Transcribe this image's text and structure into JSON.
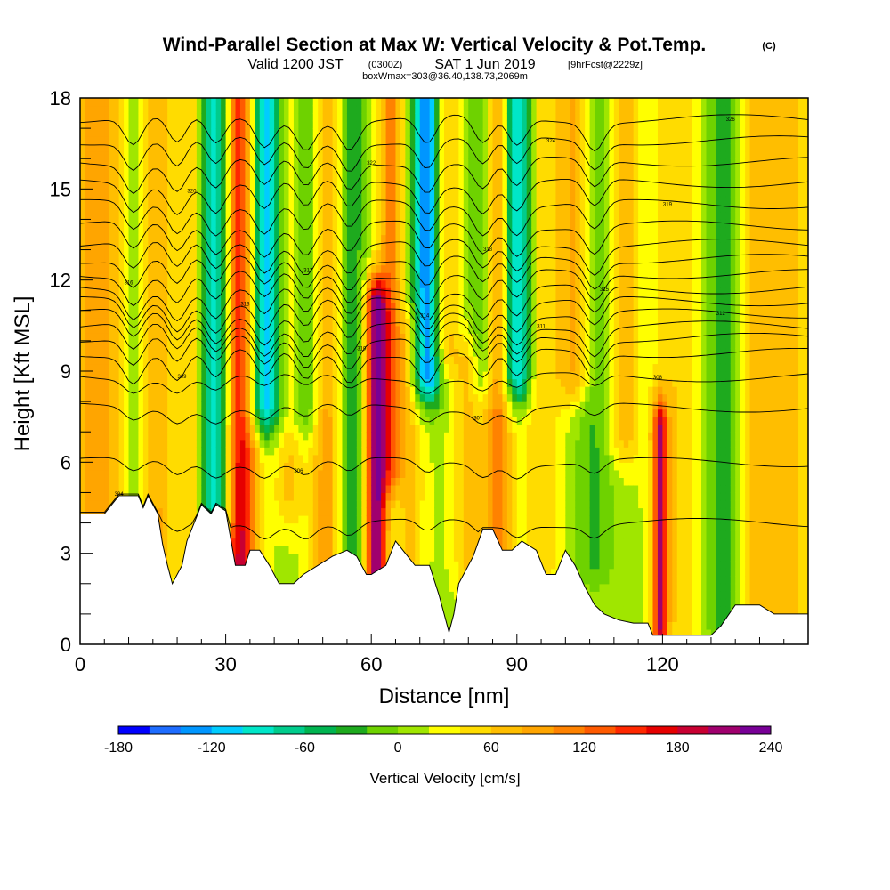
{
  "header": {
    "title": "Wind-Parallel Section at Max W: Vertical Velocity & Pot.Temp.",
    "copyright": "(C)",
    "valid_prefix": "Valid 1200 JST",
    "utc": "(0300Z)",
    "valid_date": "SAT 1 Jun 2019",
    "forecast": "[9hrFcst@2229z]",
    "box_info": "boxWmax=303@36.40,138.73,2069m"
  },
  "chart_data": {
    "type": "heatmap",
    "xlabel": "Distance [nm]",
    "ylabel": "Height [Kft MSL]",
    "xlim": [
      0,
      150
    ],
    "ylim": [
      0,
      18
    ],
    "xticks": [
      0,
      30,
      60,
      90,
      120
    ],
    "yticks": [
      0,
      3,
      6,
      9,
      12,
      15,
      18
    ],
    "colorbar": {
      "label": "Vertical Velocity [cm/s]",
      "min": -180,
      "max": 240,
      "step": 20,
      "ticks": [
        -180,
        -120,
        -60,
        0,
        60,
        120,
        180,
        240
      ],
      "colors": [
        "#0000ff",
        "#1e6cff",
        "#0096ff",
        "#00ccff",
        "#00e6c8",
        "#00cc8c",
        "#00b450",
        "#1eaa1e",
        "#6ed200",
        "#a0e600",
        "#ffff00",
        "#ffdc00",
        "#ffbe00",
        "#ffa500",
        "#ff8200",
        "#ff5a00",
        "#ff2800",
        "#e60000",
        "#c80032",
        "#a0006e",
        "#780096"
      ]
    },
    "velocity_features": [
      {
        "x": 5,
        "w": 80,
        "width": 8,
        "z0": 4,
        "z1": 18
      },
      {
        "x": 11,
        "w": -55,
        "width": 4,
        "z0": 5,
        "z1": 18
      },
      {
        "x": 16.5,
        "w": 75,
        "width": 4,
        "z0": 3,
        "z1": 18
      },
      {
        "x": 20,
        "w": -30,
        "width": 4,
        "z0": 3,
        "z1": 18
      },
      {
        "x": 23.5,
        "w": 60,
        "width": 3.5,
        "z0": 2.5,
        "z1": 18
      },
      {
        "x": 28,
        "w": -130,
        "width": 3.5,
        "z0": 4.5,
        "z1": 18
      },
      {
        "x": 33,
        "w": 175,
        "width": 3.5,
        "z0": 2.5,
        "z1": 18
      },
      {
        "x": 38,
        "w": -140,
        "width": 4,
        "z0": 8,
        "z1": 18
      },
      {
        "x": 43,
        "w": 50,
        "width": 3,
        "z0": 5,
        "z1": 18
      },
      {
        "x": 46.5,
        "w": -60,
        "width": 3,
        "z0": 8,
        "z1": 18
      },
      {
        "x": 51,
        "w": 80,
        "width": 3.5,
        "z0": 2.5,
        "z1": 18
      },
      {
        "x": 55.5,
        "w": -60,
        "width": 3,
        "z0": 3,
        "z1": 18
      },
      {
        "x": 61,
        "w": 205,
        "width": 2.2,
        "z0": 2.5,
        "z1": 11
      },
      {
        "x": 64,
        "w": 90,
        "width": 2.5,
        "z0": 6,
        "z1": 18
      },
      {
        "x": 68,
        "w": 50,
        "width": 3,
        "z0": 3,
        "z1": 10
      },
      {
        "x": 71.5,
        "w": -165,
        "width": 2.8,
        "z0": 9,
        "z1": 18
      },
      {
        "x": 75,
        "w": 60,
        "width": 3,
        "z0": 10,
        "z1": 18
      },
      {
        "x": 80,
        "w": 55,
        "width": 3,
        "z0": 3,
        "z1": 9
      },
      {
        "x": 83,
        "w": -60,
        "width": 2.5,
        "z0": 9,
        "z1": 18
      },
      {
        "x": 86,
        "w": 100,
        "width": 3,
        "z0": 3,
        "z1": 18
      },
      {
        "x": 90,
        "w": -140,
        "width": 3,
        "z0": 9,
        "z1": 18
      },
      {
        "x": 95,
        "w": 45,
        "width": 4,
        "z0": 3,
        "z1": 18
      },
      {
        "x": 102,
        "w": 75,
        "width": 3.5,
        "z0": 9,
        "z1": 18
      },
      {
        "x": 106,
        "w": -40,
        "width": 4,
        "z0": 3,
        "z1": 18
      },
      {
        "x": 112,
        "w": 55,
        "width": 3.5,
        "z0": 7,
        "z1": 18
      },
      {
        "x": 119.5,
        "w": 160,
        "width": 1.5,
        "z0": 0.5,
        "z1": 7
      },
      {
        "x": 123,
        "w": 45,
        "width": 5,
        "z0": 1,
        "z1": 18
      },
      {
        "x": 133,
        "w": -55,
        "width": 4,
        "z0": 1,
        "z1": 18
      },
      {
        "x": 138,
        "w": 45,
        "width": 3.5,
        "z0": 1,
        "z1": 18
      },
      {
        "x": 145,
        "w": 55,
        "width": 6,
        "z0": 1,
        "z1": 18
      }
    ],
    "terrain": [
      [
        0,
        4.3
      ],
      [
        5,
        4.3
      ],
      [
        8,
        4.9
      ],
      [
        12,
        4.9
      ],
      [
        13,
        4.5
      ],
      [
        14,
        4.9
      ],
      [
        16,
        4.3
      ],
      [
        17,
        3.3
      ],
      [
        18,
        2.6
      ],
      [
        19,
        2.0
      ],
      [
        21,
        2.6
      ],
      [
        22,
        3.4
      ],
      [
        24,
        4.2
      ],
      [
        25,
        4.6
      ],
      [
        27,
        4.3
      ],
      [
        28,
        4.6
      ],
      [
        30,
        4.4
      ],
      [
        31,
        3.5
      ],
      [
        32,
        2.6
      ],
      [
        34,
        2.6
      ],
      [
        35,
        3.1
      ],
      [
        37,
        3.1
      ],
      [
        39,
        2.6
      ],
      [
        41,
        2.0
      ],
      [
        44,
        2.0
      ],
      [
        46,
        2.3
      ],
      [
        49,
        2.6
      ],
      [
        52,
        2.9
      ],
      [
        55,
        3.1
      ],
      [
        57,
        2.9
      ],
      [
        59,
        2.3
      ],
      [
        60,
        2.3
      ],
      [
        63,
        2.6
      ],
      [
        65,
        3.4
      ],
      [
        67,
        3.0
      ],
      [
        69,
        2.6
      ],
      [
        72,
        2.6
      ],
      [
        74,
        1.6
      ],
      [
        75,
        1.0
      ],
      [
        76,
        0.4
      ],
      [
        77,
        1.0
      ],
      [
        78,
        2.0
      ],
      [
        81,
        2.9
      ],
      [
        83,
        3.8
      ],
      [
        85,
        3.8
      ],
      [
        87,
        3.1
      ],
      [
        89,
        3.1
      ],
      [
        91,
        3.4
      ],
      [
        94,
        3.1
      ],
      [
        96,
        2.3
      ],
      [
        98,
        2.3
      ],
      [
        100,
        3.1
      ],
      [
        102,
        2.6
      ],
      [
        104,
        1.9
      ],
      [
        106,
        1.3
      ],
      [
        108,
        1.0
      ],
      [
        111,
        0.8
      ],
      [
        114,
        0.7
      ],
      [
        117,
        0.7
      ],
      [
        118,
        0.3
      ],
      [
        130,
        0.3
      ],
      [
        132,
        0.6
      ],
      [
        135,
        1.3
      ],
      [
        140,
        1.3
      ],
      [
        143,
        1.0
      ],
      [
        150,
        1.0
      ]
    ],
    "isentrope_base_levels": [
      4.0,
      6.0,
      7.8,
      8.8,
      9.6,
      10.1,
      10.5,
      10.9,
      11.3,
      11.7,
      12.2,
      12.7,
      13.2,
      13.8,
      14.5,
      15.2,
      15.9,
      16.6,
      17.3
    ],
    "isentrope_labels": [
      "304",
      "306",
      "307",
      "308",
      "309",
      "310",
      "311",
      "312",
      "313",
      "314",
      "315",
      "316",
      "317",
      "318",
      "319",
      "320",
      "322",
      "324",
      "326"
    ]
  }
}
